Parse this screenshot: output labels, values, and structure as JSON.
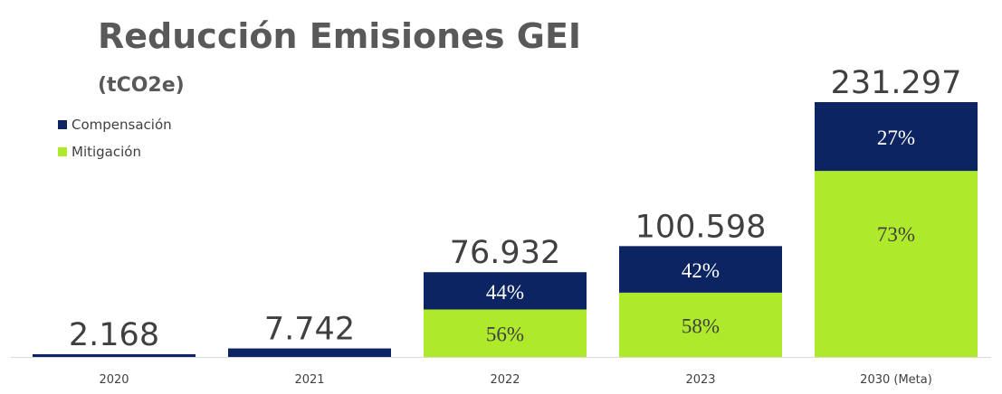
{
  "chart_data": {
    "type": "bar",
    "stacked": true,
    "title": "Reducción Emisiones GEI",
    "subtitle": "(tCO2e)",
    "categories": [
      "2020",
      "2021",
      "2022",
      "2023",
      "2030 (Meta)"
    ],
    "totals": [
      2168,
      7742,
      76932,
      100598,
      231297
    ],
    "total_labels": [
      "2.168",
      "7.742",
      "76.932",
      "100.598",
      "231.297"
    ],
    "series": [
      {
        "name": "Compensación",
        "color": "#0c2461",
        "percents": [
          100,
          100,
          44,
          42,
          27
        ],
        "percent_labels": [
          "",
          "",
          "44%",
          "42%",
          "27%"
        ]
      },
      {
        "name": "Mitigación",
        "color": "#aeea2b",
        "percents": [
          0,
          0,
          56,
          58,
          73
        ],
        "percent_labels": [
          "",
          "",
          "56%",
          "58%",
          "73%"
        ]
      }
    ],
    "legend_position": "top-left",
    "grid": false
  }
}
